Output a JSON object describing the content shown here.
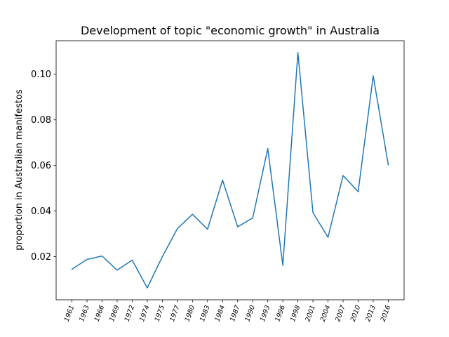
{
  "chart_data": {
    "type": "line",
    "title": "Development of topic \"economic growth\" in Australia",
    "xlabel": "",
    "ylabel": "proportion in Australian manifestos",
    "categories": [
      "1961",
      "1963",
      "1966",
      "1969",
      "1972",
      "1974",
      "1975",
      "1977",
      "1980",
      "1983",
      "1984",
      "1987",
      "1990",
      "1993",
      "1996",
      "1998",
      "2001",
      "2004",
      "2007",
      "2010",
      "2013",
      "2016"
    ],
    "series": [
      {
        "values": [
          0.0145,
          0.0188,
          0.0203,
          0.0141,
          0.0185,
          0.0063,
          0.02,
          0.0323,
          0.0386,
          0.032,
          0.0536,
          0.0331,
          0.037,
          0.0674,
          0.0162,
          0.1095,
          0.0393,
          0.0285,
          0.0556,
          0.0485,
          0.0993,
          0.0603
        ],
        "color": "#1f77b4"
      }
    ],
    "yticks": [
      "0.02",
      "0.04",
      "0.06",
      "0.08",
      "0.10"
    ],
    "ytick_values": [
      0.02,
      0.04,
      0.06,
      0.08,
      0.1
    ],
    "ylim": [
      0.0011,
      0.1147
    ],
    "grid": false,
    "legend": "none"
  }
}
